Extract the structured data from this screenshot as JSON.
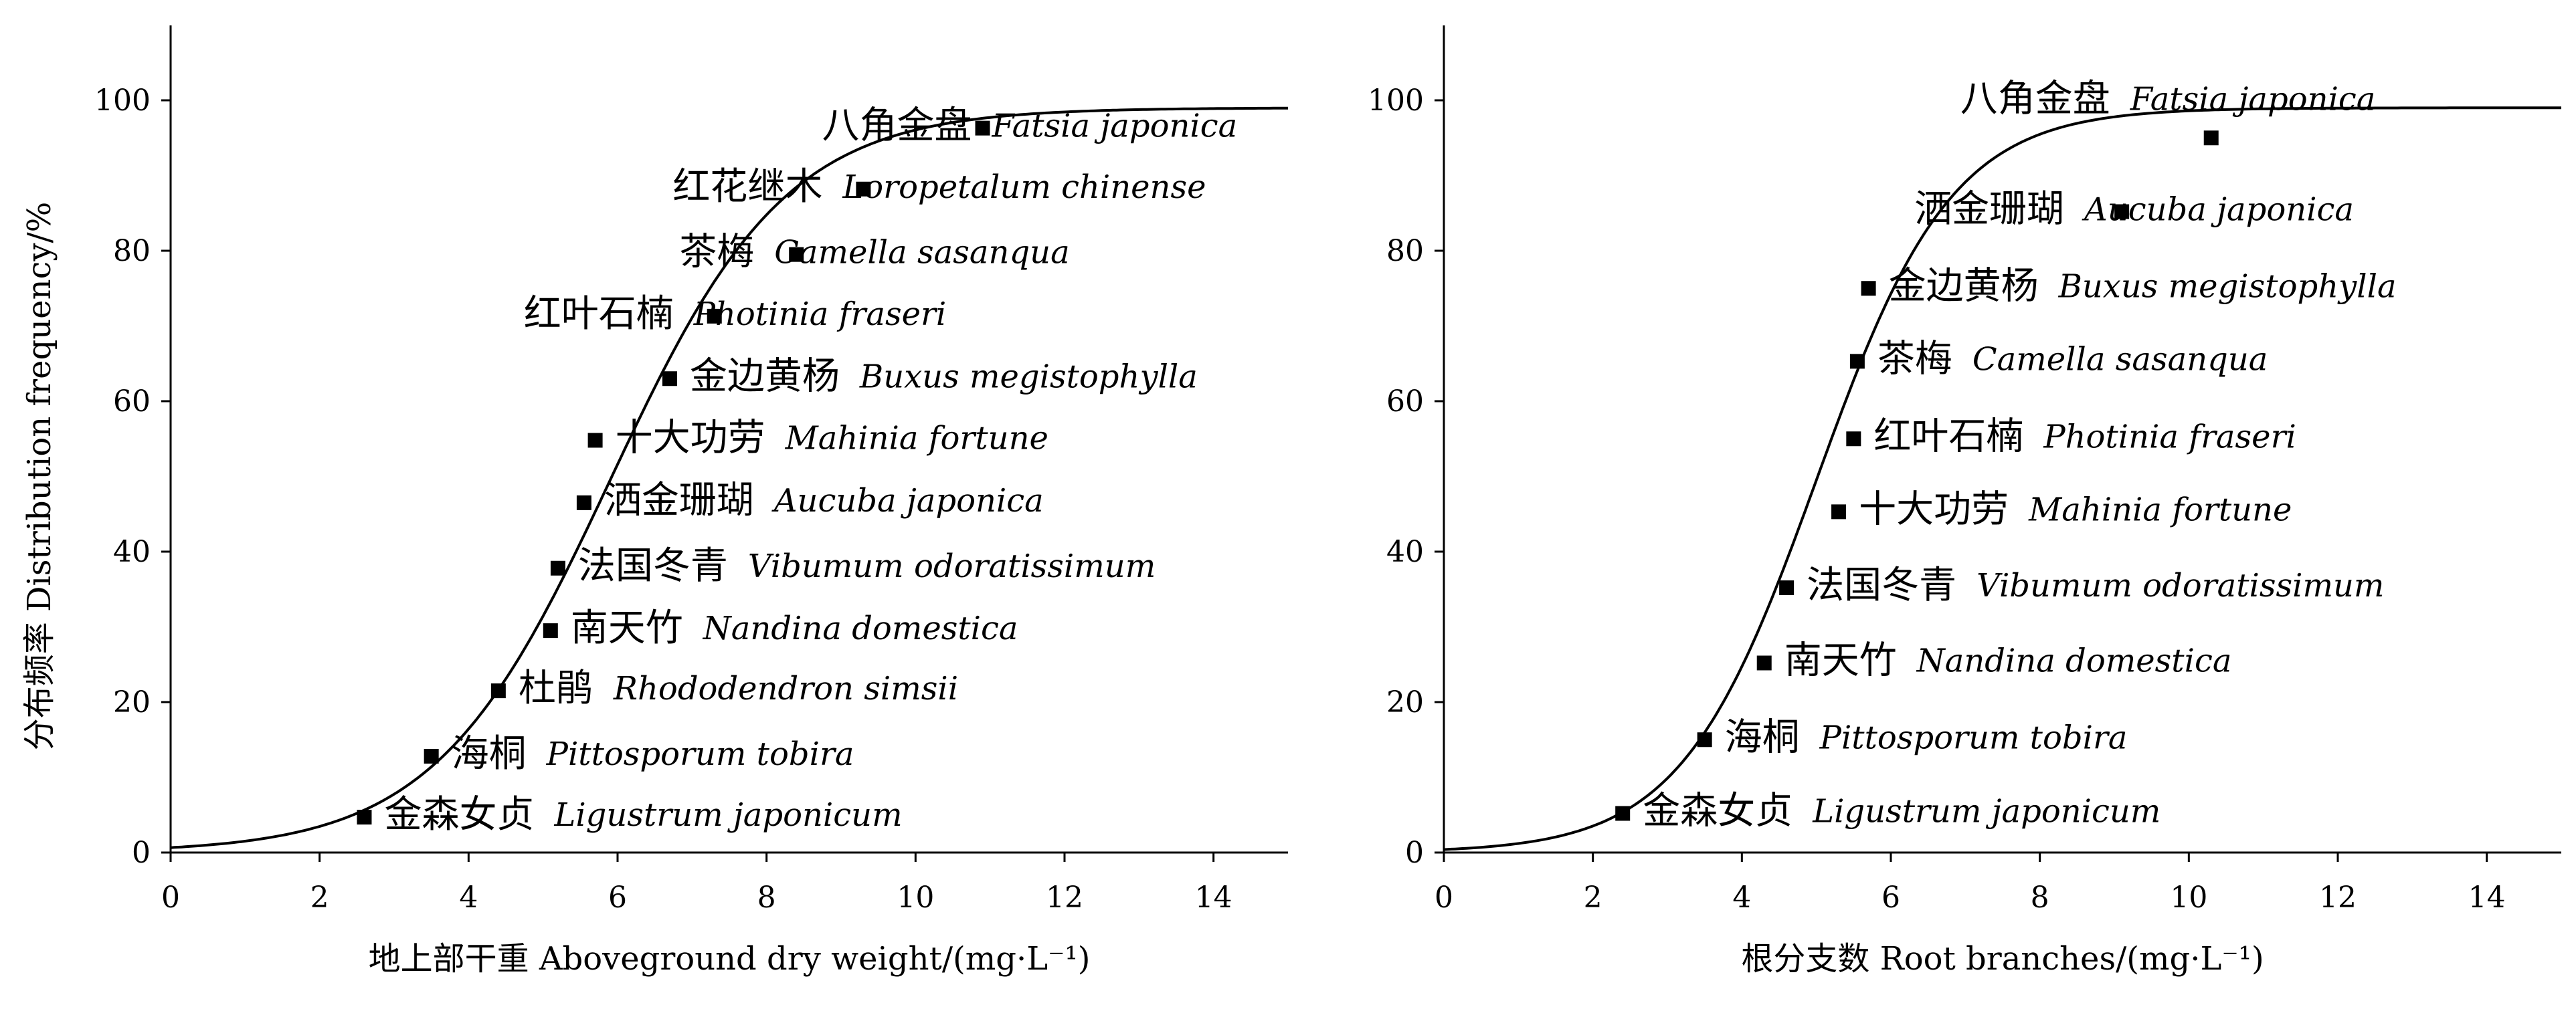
{
  "shared_ylabel": "分布频率 Distribution frequency/%",
  "chart_data": [
    {
      "type": "scatter",
      "xlabel": "地上部干重 Aboveground dry weight/(mg·L⁻¹)",
      "ylabel": "分布频率 Distribution frequency/%",
      "xlim": [
        0,
        15
      ],
      "ylim": [
        0,
        110
      ],
      "xticks": [
        0,
        2,
        4,
        6,
        8,
        10,
        12,
        14
      ],
      "yticks": [
        0,
        20,
        40,
        60,
        80,
        100
      ],
      "fit_curve": {
        "type": "logistic",
        "midpoint": 5.9,
        "slope": 0.85,
        "max": 99
      },
      "points": [
        {
          "cn": "八角金盘",
          "latin": "Fatsia japonica",
          "x": 10.9,
          "y": 96.3
        },
        {
          "cn": "红花继木",
          "latin": "Loropetalum chinense",
          "x": 9.3,
          "y": 88.2
        },
        {
          "cn": "茶梅",
          "latin": "Camella sasanqua",
          "x": 8.4,
          "y": 79.5
        },
        {
          "cn": "红叶石楠",
          "latin": "Photinia fraseri",
          "x": 7.3,
          "y": 71.3
        },
        {
          "cn": "金边黄杨",
          "latin": "Buxus megistophylla",
          "x": 6.7,
          "y": 63.0
        },
        {
          "cn": "十大功劳",
          "latin": "Mahinia fortune",
          "x": 5.7,
          "y": 54.8
        },
        {
          "cn": "洒金珊瑚",
          "latin": "Aucuba japonica",
          "x": 5.55,
          "y": 46.5
        },
        {
          "cn": "法国冬青",
          "latin": "Vibumum odoratissimum",
          "x": 5.2,
          "y": 37.8
        },
        {
          "cn": "南天竹",
          "latin": "Nandina domestica",
          "x": 5.1,
          "y": 29.5
        },
        {
          "cn": "杜鹃",
          "latin": "Rhododendron simsii",
          "x": 4.4,
          "y": 21.5
        },
        {
          "cn": "海桐",
          "latin": "Pittosporum tobira",
          "x": 3.5,
          "y": 12.8
        },
        {
          "cn": "金森女贞",
          "latin": "Ligustrum japonicum",
          "x": 2.6,
          "y": 4.7
        }
      ]
    },
    {
      "type": "scatter",
      "xlabel": "根分支数 Root branches/(mg·L⁻¹)",
      "xlim": [
        0,
        15
      ],
      "ylim": [
        0,
        110
      ],
      "xticks": [
        0,
        2,
        4,
        6,
        8,
        10,
        12,
        14
      ],
      "yticks": [
        0,
        20,
        40,
        60,
        80,
        100
      ],
      "fit_curve": {
        "type": "logistic",
        "midpoint": 5.0,
        "slope": 1.1,
        "max": 99
      },
      "points": [
        {
          "cn": "八角金盘",
          "latin": "Fatsia japonica",
          "x": 10.3,
          "y": 95.0
        },
        {
          "cn": "洒金珊瑚",
          "latin": "Aucuba japonica",
          "x": 9.1,
          "y": 85.2
        },
        {
          "cn": "金边黄杨",
          "latin": "Buxus megistophylla",
          "x": 5.7,
          "y": 75.0
        },
        {
          "cn": "茶梅",
          "latin": "Camella sasanqua",
          "x": 5.55,
          "y": 65.3
        },
        {
          "cn": "红叶石楠",
          "latin": "Photinia fraseri",
          "x": 5.5,
          "y": 55.0
        },
        {
          "cn": "十大功劳",
          "latin": "Mahinia fortune",
          "x": 5.3,
          "y": 45.3
        },
        {
          "cn": "法国冬青",
          "latin": "Vibumum odoratissimum",
          "x": 4.6,
          "y": 35.2
        },
        {
          "cn": "南天竹",
          "latin": "Nandina domestica",
          "x": 4.3,
          "y": 25.2
        },
        {
          "cn": "海桐",
          "latin": "Pittosporum tobira",
          "x": 3.5,
          "y": 15.0
        },
        {
          "cn": "金森女贞",
          "latin": "Ligustrum japonicum",
          "x": 2.4,
          "y": 5.2
        }
      ]
    }
  ]
}
